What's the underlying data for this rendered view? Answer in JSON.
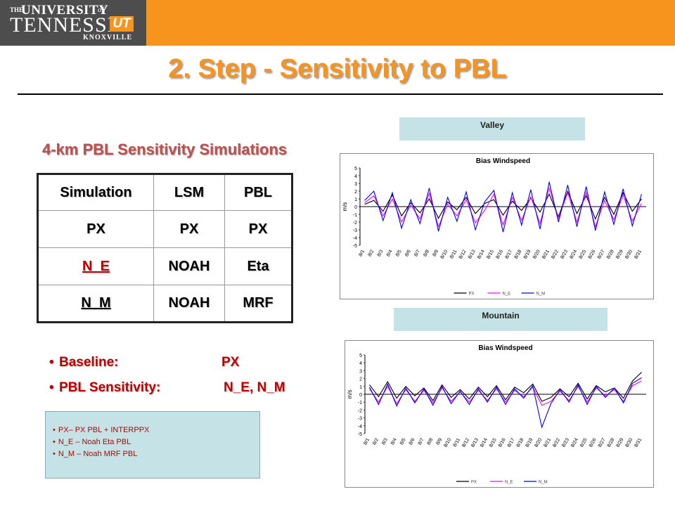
{
  "logo": {
    "the": "THE",
    "university": "UNIVERSITY",
    "of": "of",
    "tennessee": "TENNESSEE",
    "ut": "UT",
    "knoxville": "KNOXVILLE"
  },
  "title": "2. Step - Sensitivity to PBL",
  "subtitle": "4-km PBL Sensitivity Simulations",
  "table": {
    "headers": [
      "Simulation",
      "LSM",
      "PBL"
    ],
    "rows": [
      [
        "PX",
        "PX",
        "PX"
      ],
      [
        "N_E",
        "NOAH",
        "Eta"
      ],
      [
        "N_M",
        "NOAH",
        "MRF"
      ]
    ]
  },
  "bullets": [
    {
      "label": "Baseline:",
      "value": "PX"
    },
    {
      "label": "PBL Sensitivity:",
      "value": "N_E, N_M"
    }
  ],
  "notes": [
    "PX– PX PBL + INTERPPX",
    "N_E – Noah Eta PBL",
    "N_M – Noah MRF PBL"
  ],
  "colors": {
    "accent_orange": "#F7941D",
    "logo_gray": "#4D4D4D",
    "text_red": "#C00000",
    "box_cyan": "#C5E3E6",
    "series_px": "#000000",
    "series_ne": "#FF00FF",
    "series_nm": "#0000FF"
  },
  "panels": [
    {
      "label": "Valley"
    },
    {
      "label": "Mountain"
    }
  ],
  "chart_data": [
    {
      "type": "line",
      "title": "Bias Windspeed",
      "xlabel": "",
      "ylabel": "m/s",
      "ylim": [
        -5,
        5
      ],
      "yticks": [
        5,
        4,
        3,
        2,
        1,
        0,
        -1,
        -2,
        -3,
        -4,
        -5
      ],
      "categories": [
        "8/1",
        "8/2",
        "8/3",
        "8/4",
        "8/5",
        "8/6",
        "8/7",
        "8/8",
        "8/9",
        "8/10",
        "8/11",
        "8/12",
        "8/13",
        "8/14",
        "8/15",
        "8/16",
        "8/17",
        "8/18",
        "8/19",
        "8/20",
        "8/21",
        "8/22",
        "8/23",
        "8/24",
        "8/25",
        "8/26",
        "8/27",
        "8/28",
        "8/29",
        "8/30",
        "8/31"
      ],
      "legend": [
        "PX",
        "N_E",
        "N_M"
      ],
      "legend_position": "bottom",
      "grid": false,
      "series": [
        {
          "name": "PX",
          "values": [
            0.3,
            0.8,
            -0.6,
            1.5,
            -1.2,
            0.5,
            -0.8,
            1.0,
            -1.5,
            0.6,
            -0.4,
            1.2,
            -0.9,
            0.4,
            0.9,
            -1.1,
            0.7,
            -0.5,
            1.1,
            -0.7,
            1.6,
            -1.3,
            2.0,
            -0.9,
            1.4,
            -1.6,
            1.2,
            -1.0,
            1.8,
            -0.6,
            1.0
          ]
        },
        {
          "name": "N_E",
          "values": [
            0.5,
            1.4,
            -1.2,
            1.0,
            -2.0,
            0.2,
            -1.6,
            1.7,
            -2.6,
            0.3,
            -1.2,
            0.9,
            -2.1,
            -0.5,
            1.6,
            -2.4,
            1.2,
            -1.8,
            1.3,
            -2.2,
            2.4,
            -1.5,
            1.8,
            -2.0,
            1.9,
            -2.6,
            0.8,
            -1.7,
            1.5,
            -1.9,
            0.4
          ]
        },
        {
          "name": "N_M",
          "values": [
            0.8,
            2.0,
            -1.8,
            1.8,
            -2.8,
            0.9,
            -2.2,
            2.4,
            -3.2,
            1.2,
            -1.9,
            1.9,
            -3.0,
            0.6,
            2.1,
            -3.3,
            1.8,
            -2.4,
            2.2,
            -2.9,
            3.2,
            -2.0,
            2.8,
            -2.6,
            2.6,
            -3.1,
            1.9,
            -2.3,
            2.3,
            -2.5,
            1.6
          ]
        }
      ]
    },
    {
      "type": "line",
      "title": "Bias Windspeed",
      "xlabel": "",
      "ylabel": "m/s",
      "ylim": [
        -5,
        5
      ],
      "yticks": [
        5,
        4,
        3,
        2,
        1,
        0,
        -1,
        -2,
        -3,
        -4,
        -5
      ],
      "categories": [
        "8/1",
        "8/2",
        "8/3",
        "8/4",
        "8/5",
        "8/6",
        "8/7",
        "8/8",
        "8/9",
        "8/10",
        "8/11",
        "8/12",
        "8/13",
        "8/14",
        "8/15",
        "8/16",
        "8/17",
        "8/18",
        "8/19",
        "8/20",
        "8/21",
        "8/22",
        "8/23",
        "8/24",
        "8/25",
        "8/26",
        "8/27",
        "8/28",
        "8/29",
        "8/30",
        "8/31"
      ],
      "legend": [
        "PX",
        "N_E",
        "N_M"
      ],
      "legend_position": "bottom",
      "grid": false,
      "series": [
        {
          "name": "PX",
          "values": [
            1.2,
            -0.3,
            1.6,
            -0.5,
            1.0,
            -0.2,
            0.8,
            -0.8,
            1.2,
            -0.4,
            0.6,
            -0.6,
            0.9,
            -0.3,
            1.1,
            -0.7,
            0.9,
            0.2,
            1.3,
            -0.9,
            -0.4,
            0.7,
            -0.3,
            1.4,
            -0.6,
            1.1,
            0.3,
            0.8,
            -0.5,
            1.7,
            2.8
          ]
        },
        {
          "name": "N_E",
          "values": [
            0.7,
            -1.0,
            1.0,
            -1.2,
            0.6,
            -0.9,
            0.5,
            -1.1,
            0.8,
            -0.9,
            0.3,
            -1.0,
            0.5,
            -0.8,
            0.7,
            -1.0,
            0.5,
            -0.3,
            0.9,
            -1.4,
            -0.9,
            0.4,
            -0.8,
            1.0,
            -1.0,
            0.8,
            -0.2,
            0.6,
            -0.9,
            1.1,
            1.7
          ]
        },
        {
          "name": "N_M",
          "values": [
            0.9,
            -1.3,
            1.3,
            -1.5,
            0.8,
            -1.1,
            0.7,
            -1.4,
            1.0,
            -1.2,
            0.4,
            -1.3,
            0.7,
            -1.0,
            0.9,
            -1.3,
            0.7,
            -0.5,
            1.1,
            -4.2,
            -1.2,
            0.6,
            -1.0,
            1.2,
            -1.3,
            1.0,
            -0.4,
            0.8,
            -1.1,
            1.4,
            2.1
          ]
        }
      ]
    }
  ]
}
